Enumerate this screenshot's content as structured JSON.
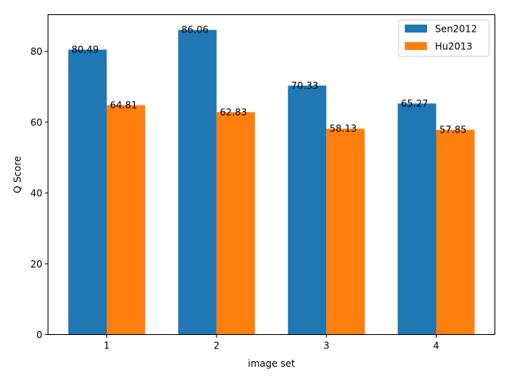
{
  "chart_data": {
    "type": "bar",
    "title": "",
    "xlabel": "image set",
    "ylabel": "Q Score",
    "categories": [
      "1",
      "2",
      "3",
      "4"
    ],
    "series": [
      {
        "name": "Sen2012",
        "values": [
          80.49,
          86.06,
          70.33,
          65.27
        ],
        "color": "#1f77b4"
      },
      {
        "name": "Hu2013",
        "values": [
          64.81,
          62.83,
          58.13,
          57.85
        ],
        "color": "#ff7f0e"
      }
    ],
    "ylim": [
      0,
      90.36
    ],
    "yticks": [
      0,
      20,
      40,
      60,
      80
    ],
    "grid": false,
    "legend": "top-right",
    "data_labels": true
  }
}
